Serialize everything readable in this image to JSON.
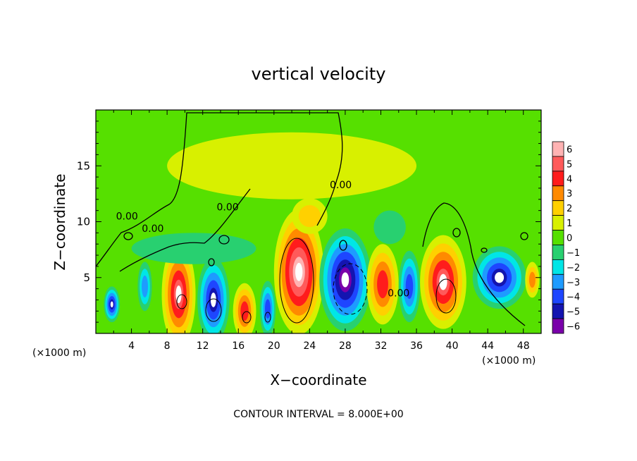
{
  "chart_data": {
    "type": "heatmap",
    "title": "vertical velocity",
    "xlabel": "X−coordinate",
    "ylabel": "Z−coordinate",
    "x_unit_left": "(×1000 m)",
    "x_unit_right": "(×1000 m)",
    "footer": "CONTOUR INTERVAL = 8.000E+00",
    "xlim": [
      0,
      50
    ],
    "ylim": [
      0,
      20
    ],
    "x_ticks": [
      "4",
      "8",
      "12",
      "16",
      "20",
      "24",
      "28",
      "32",
      "36",
      "40",
      "44",
      "48"
    ],
    "y_ticks": [
      "5",
      "10",
      "15"
    ],
    "colorbar": {
      "labels": [
        "6",
        "5",
        "4",
        "3",
        "2",
        "1",
        "0",
        "−1",
        "−2",
        "−3",
        "−4",
        "−5",
        "−6"
      ],
      "levels": [
        6,
        5,
        4,
        3,
        2,
        1,
        0,
        -1,
        -2,
        -3,
        -4,
        -5,
        -6
      ],
      "colors": [
        "#ffb3b3",
        "#ff5a5a",
        "#ff1c1c",
        "#ff8a00",
        "#ffd000",
        "#d8f000",
        "#56e000",
        "#28d070",
        "#00e6e6",
        "#1e9bff",
        "#1e46ff",
        "#1414b0",
        "#7a00aa"
      ]
    },
    "contour_labels": [
      {
        "text": "0.00",
        "x": 3.5,
        "y": 10.2
      },
      {
        "text": "0.00",
        "x": 6.4,
        "y": 9.1
      },
      {
        "text": "0.00",
        "x": 14.8,
        "y": 11.0
      },
      {
        "text": "0.00",
        "x": 27.5,
        "y": 13.0
      },
      {
        "text": "0.00",
        "x": 34.0,
        "y": 3.3
      }
    ],
    "cells": [
      {
        "x": 1.8,
        "z": 2.6,
        "rx": 0.9,
        "rz": 1.6,
        "v": -5.2
      },
      {
        "x": 5.5,
        "z": 4.2,
        "rx": 0.8,
        "rz": 2.2,
        "v": -3.2
      },
      {
        "x": 9.3,
        "z": 3.5,
        "rx": 1.9,
        "rz": 4.6,
        "v": 4.6
      },
      {
        "x": 13.2,
        "z": 3.0,
        "rx": 1.8,
        "rz": 3.8,
        "v": -4.8
      },
      {
        "x": 16.7,
        "z": 2.0,
        "rx": 1.3,
        "rz": 2.5,
        "v": 4.2
      },
      {
        "x": 19.3,
        "z": 2.2,
        "rx": 0.9,
        "rz": 2.5,
        "v": -4.0
      },
      {
        "x": 22.8,
        "z": 5.5,
        "rx": 2.8,
        "rz": 5.6,
        "v": 5.8
      },
      {
        "x": 28.0,
        "z": 4.8,
        "rx": 2.9,
        "rz": 4.6,
        "v": -5.6
      },
      {
        "x": 32.2,
        "z": 4.4,
        "rx": 1.8,
        "rz": 3.6,
        "v": 4.0
      },
      {
        "x": 35.2,
        "z": 4.2,
        "rx": 1.2,
        "rz": 3.2,
        "v": -3.6
      },
      {
        "x": 39.0,
        "z": 4.6,
        "rx": 2.6,
        "rz": 4.2,
        "v": 5.4
      },
      {
        "x": 45.3,
        "z": 5.0,
        "rx": 3.0,
        "rz": 2.8,
        "v": -5.0
      },
      {
        "x": 49.0,
        "z": 4.8,
        "rx": 0.8,
        "rz": 1.6,
        "v": 2.5
      },
      {
        "x": 11.0,
        "z": 7.6,
        "rx": 7.0,
        "rz": 1.4,
        "v": -1.2
      },
      {
        "x": 24.0,
        "z": 10.5,
        "rx": 2.0,
        "rz": 1.6,
        "v": 1.8
      },
      {
        "x": 33.0,
        "z": 9.5,
        "rx": 1.8,
        "rz": 1.5,
        "v": -1.3
      },
      {
        "x": 22.0,
        "z": 15.0,
        "rx": 14.0,
        "rz": 3.0,
        "v": 0.4
      }
    ]
  }
}
